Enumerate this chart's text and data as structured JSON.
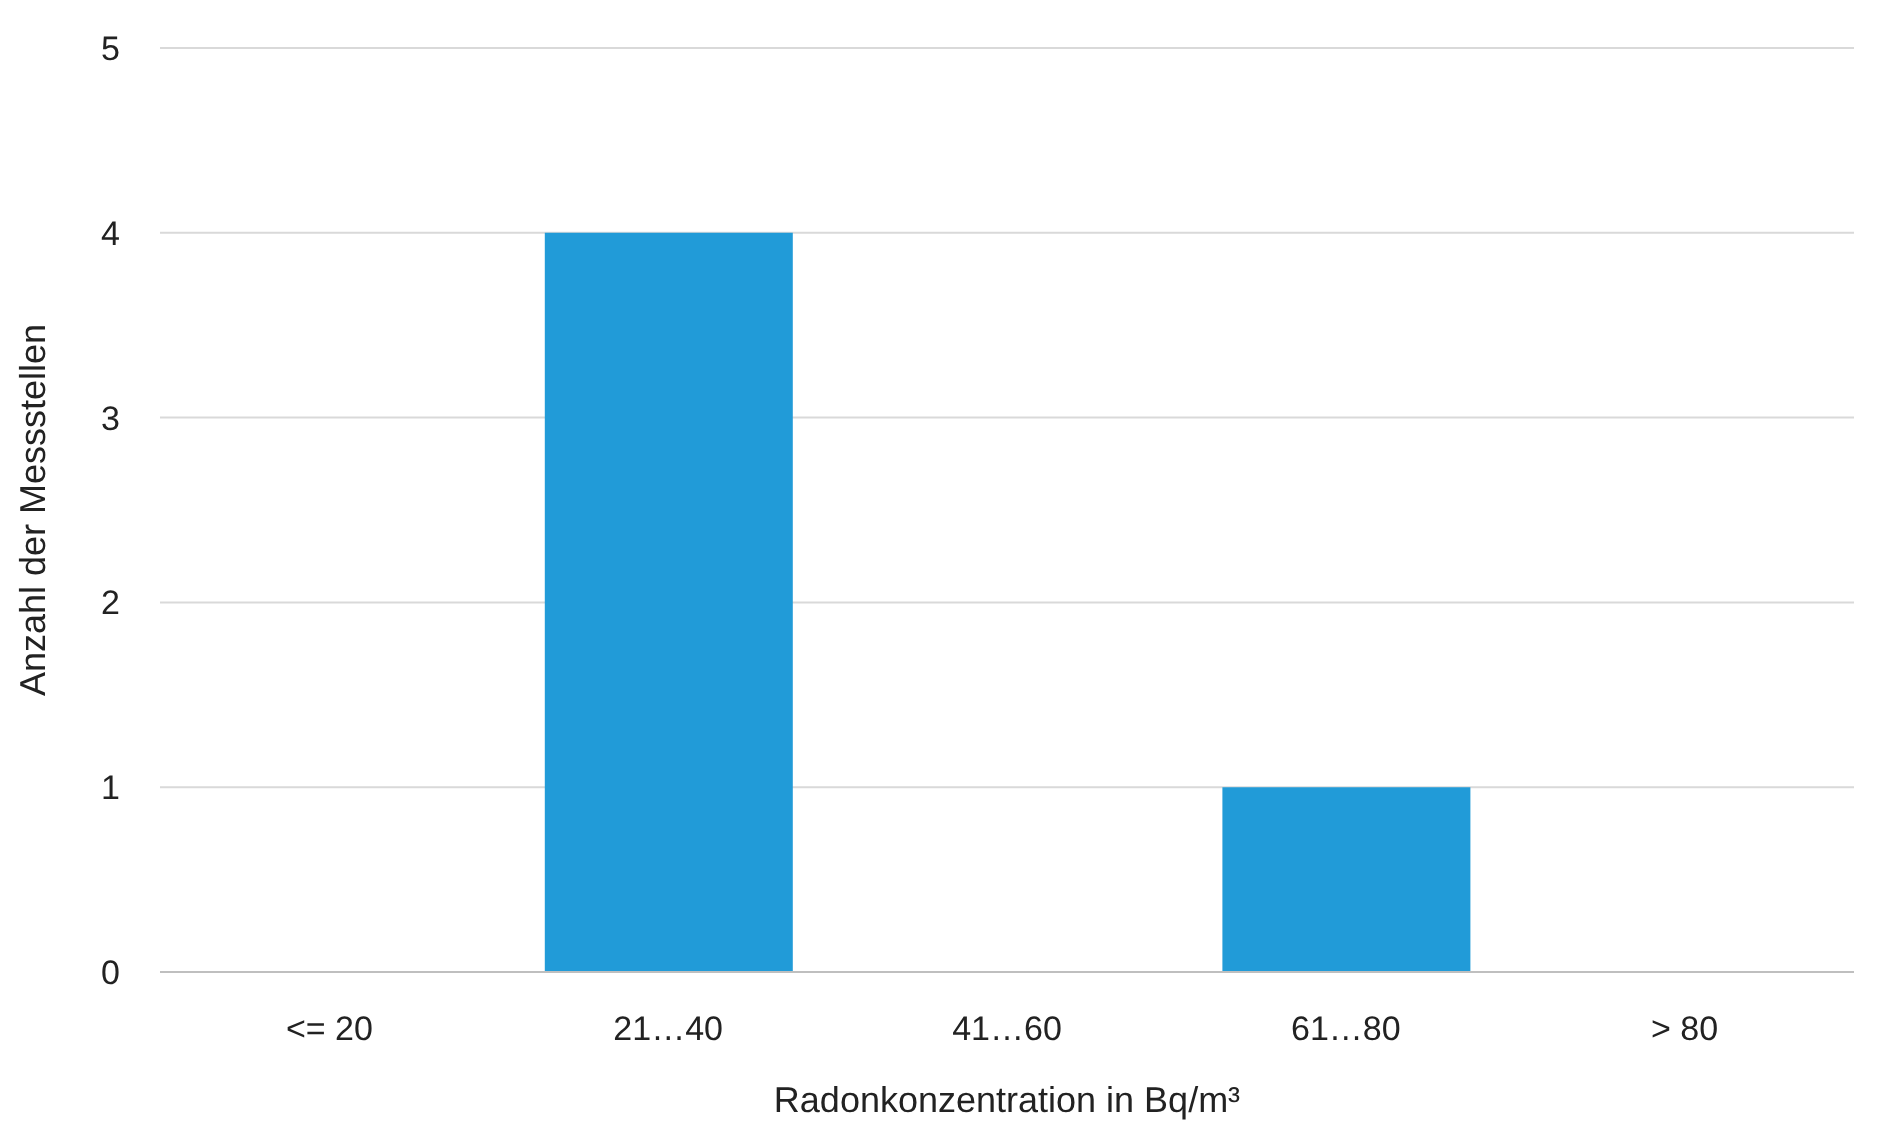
{
  "chart_data": {
    "type": "bar",
    "xlabel": "Radonkonzentration in Bq/m³",
    "ylabel": "Anzahl der Messstellen",
    "categories": [
      "<= 20",
      "21…40",
      "41…60",
      "61…80",
      "> 80"
    ],
    "values": [
      0,
      4,
      0,
      1,
      0
    ],
    "color": "#219bd8",
    "ylim": [
      0,
      5
    ],
    "yticks": [
      0,
      1,
      2,
      3,
      4,
      5
    ],
    "grid": "y"
  }
}
